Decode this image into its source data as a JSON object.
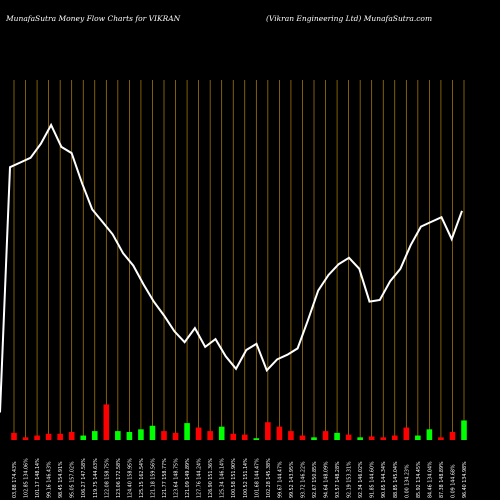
{
  "header": {
    "left": "MunafaSutra  Money Flow  Charts for VIKRAN",
    "right": "(Vikran  Engineering Ltd) MunafaSutra.com"
  },
  "colors": {
    "background": "#000000",
    "grid": "#b8860b",
    "line": "#ffffff",
    "bar_up": "#00ff00",
    "bar_down": "#ff0000",
    "label": "#ffffff"
  },
  "chart_data": {
    "type": "line",
    "title": "MunafaSutra  Money Flow  Charts for VIKRAN",
    "subtitle": "(Vikran  Engineering Ltd) MunafaSutra.com",
    "grid": "vertical",
    "price_line": [
      8,
      165,
      168,
      171,
      180,
      192,
      178,
      174,
      155,
      138,
      130,
      122,
      110,
      102,
      90,
      79,
      70,
      60,
      53,
      62,
      50,
      55,
      44,
      36,
      48,
      52,
      35,
      42,
      45,
      49,
      67,
      86,
      96,
      103,
      107,
      100,
      79,
      80,
      92,
      100,
      115,
      127,
      130,
      133,
      119,
      137
    ],
    "bars": [
      {
        "label": "03,88 174.43%",
        "value": 8,
        "dir": "down"
      },
      {
        "label": "102.85 134.06%",
        "value": 3,
        "dir": "down"
      },
      {
        "label": "101.17 148.14%",
        "value": 5,
        "dir": "down"
      },
      {
        "label": "99.16 146.43%",
        "value": 7,
        "dir": "down"
      },
      {
        "label": "98.45 154.91%",
        "value": 7,
        "dir": "down"
      },
      {
        "label": "95.05 157.02%",
        "value": 9,
        "dir": "down"
      },
      {
        "label": "106.27 147.58%",
        "value": 5,
        "dir": "up"
      },
      {
        "label": "119.75 144.63%",
        "value": 10,
        "dir": "up"
      },
      {
        "label": "122.08 158.75%",
        "value": 40,
        "dir": "down"
      },
      {
        "label": "123.06 172.58%",
        "value": 10,
        "dir": "up"
      },
      {
        "label": "124.40 158.95%",
        "value": 9,
        "dir": "up"
      },
      {
        "label": "125.15 162.54%",
        "value": 12,
        "dir": "up"
      },
      {
        "label": "121.18 159.56%",
        "value": 16,
        "dir": "up"
      },
      {
        "label": "121.77 158.77%",
        "value": 10,
        "dir": "down"
      },
      {
        "label": "123.64 148.75%",
        "value": 8,
        "dir": "down"
      },
      {
        "label": "121.09 149.89%",
        "value": 19,
        "dir": "up"
      },
      {
        "label": "127.76 144.24%",
        "value": 14,
        "dir": "down"
      },
      {
        "label": "126.90 151.36%",
        "value": 10,
        "dir": "down"
      },
      {
        "label": "125.34 146.14%",
        "value": 15,
        "dir": "up"
      },
      {
        "label": "100.58 151.90%",
        "value": 7,
        "dir": "down"
      },
      {
        "label": "100.52 151.14%",
        "value": 6,
        "dir": "down"
      },
      {
        "label": "101.68 144.47%",
        "value": 2,
        "dir": "up"
      },
      {
        "label": "102.28 145.38%",
        "value": 20,
        "dir": "down"
      },
      {
        "label": "99.67 144.47%",
        "value": 15,
        "dir": "down"
      },
      {
        "label": "99.52 143.95%",
        "value": 10,
        "dir": "down"
      },
      {
        "label": "93.72 146.22%",
        "value": 5,
        "dir": "down"
      },
      {
        "label": "92.67 150.85%",
        "value": 3,
        "dir": "up"
      },
      {
        "label": "94.64 148.09%",
        "value": 10,
        "dir": "down"
      },
      {
        "label": "93.57 148.28%",
        "value": 8,
        "dir": "up"
      },
      {
        "label": "92.19 153.31%",
        "value": 6,
        "dir": "down"
      },
      {
        "label": "92.34 146.02%",
        "value": 3,
        "dir": "up"
      },
      {
        "label": "91.85 144.60%",
        "value": 4,
        "dir": "down"
      },
      {
        "label": "90.65 144.34%",
        "value": 3,
        "dir": "down"
      },
      {
        "label": "88.85 145.04%",
        "value": 5,
        "dir": "down"
      },
      {
        "label": "0.00 134.23%",
        "value": 14,
        "dir": "down"
      },
      {
        "label": "85.92 134.45%",
        "value": 5,
        "dir": "up"
      },
      {
        "label": "84.46 134.04%",
        "value": 12,
        "dir": "up"
      },
      {
        "label": "87.38 148.89%",
        "value": 3,
        "dir": "down"
      },
      {
        "label": "0.09 144.68%",
        "value": 9,
        "dir": "down"
      },
      {
        "label": "96.40 134.98%",
        "value": 22,
        "dir": "up"
      }
    ]
  }
}
